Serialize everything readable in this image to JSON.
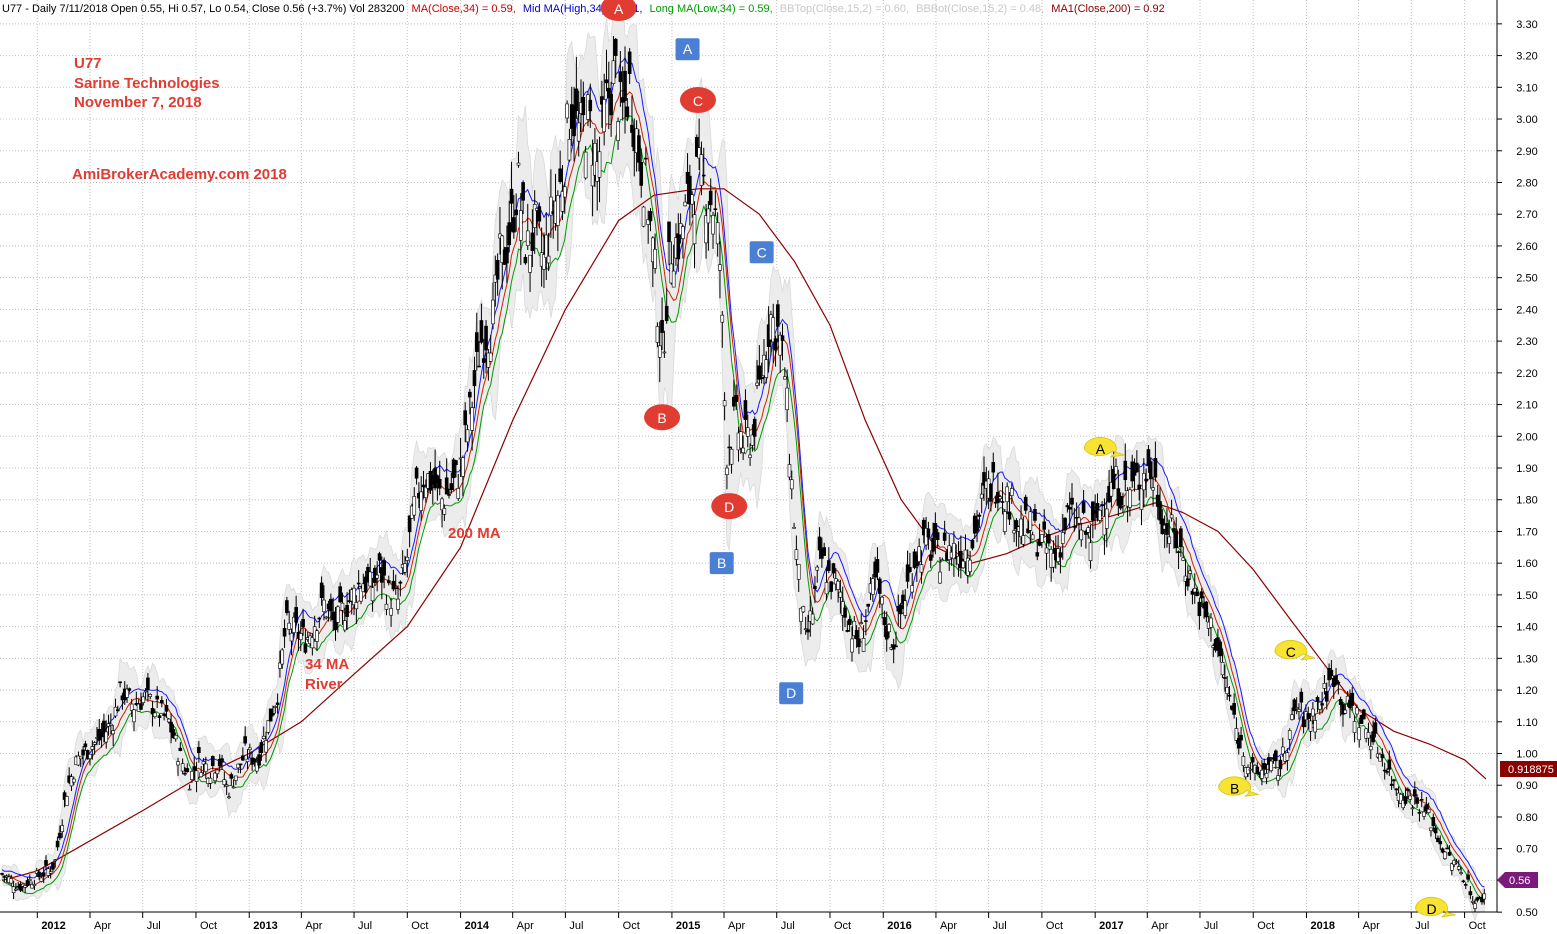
{
  "header": {
    "symbol_info": "U77 - Daily 7/11/2018 Open 0.55, Hi 0.57, Lo 0.54, Close 0.56 (+3.7%) Vol 283200",
    "indicators": [
      {
        "label": "MA(Close,34) = 0.59,",
        "color": "#cc0000"
      },
      {
        "label": "Mid MA(High,34) = 0.61,",
        "color": "#0000cc"
      },
      {
        "label": "Long MA(Low,34) = 0.59,",
        "color": "#009900"
      },
      {
        "label": "BBTop(Close,15,2) = 0.60,",
        "color": "#c8c8c8"
      },
      {
        "label": "BBBot(Close,15,2) = 0.48,",
        "color": "#c8c8c8"
      },
      {
        "label": "MA1(Close,200) = 0.92",
        "color": "#880000"
      }
    ]
  },
  "annotations": {
    "ticker": "U77",
    "company": "Sarine Technologies",
    "date": "November 7, 2018",
    "site": "AmiBrokerAcademy.com  2018",
    "ma200": "200  MA",
    "ma34_line1": "34 MA",
    "ma34_line2": "River"
  },
  "price_tags": {
    "ma200_value": "0.918875",
    "close_value": "0.56"
  },
  "colors": {
    "candle": "#000000",
    "ma_close": "#cc2200",
    "ma_high": "#1a1aff",
    "ma_low": "#009900",
    "bands": "#d9d9d9",
    "ma200": "#8b0000",
    "red_marker": "#e03c31",
    "blue_marker": "#4a7fd4",
    "yellow_marker": "#f7e332",
    "annotation": "#e03c31",
    "close_tag": "#7a1a7a"
  },
  "markers": [
    {
      "shape": "red-circle",
      "label": "A",
      "x": "2014-10-01",
      "y": 3.35
    },
    {
      "shape": "red-circle",
      "label": "B",
      "x": "2014-12-15",
      "y": 2.06
    },
    {
      "shape": "red-circle",
      "label": "C",
      "x": "2015-02-15",
      "y": 3.06
    },
    {
      "shape": "red-circle",
      "label": "D",
      "x": "2015-04-10",
      "y": 1.78
    },
    {
      "shape": "blue-square",
      "label": "A",
      "x": "2015-01-28",
      "y": 3.22
    },
    {
      "shape": "blue-square",
      "label": "B",
      "x": "2015-03-28",
      "y": 1.6
    },
    {
      "shape": "blue-square",
      "label": "C",
      "x": "2015-06-05",
      "y": 2.58
    },
    {
      "shape": "blue-square",
      "label": "D",
      "x": "2015-07-26",
      "y": 1.19
    },
    {
      "shape": "yellow-bubble",
      "label": "A",
      "x": "2017-01-10",
      "y": 1.96
    },
    {
      "shape": "yellow-bubble",
      "label": "B",
      "x": "2017-08-30",
      "y": 0.89
    },
    {
      "shape": "yellow-bubble",
      "label": "C",
      "x": "2017-12-05",
      "y": 1.32
    },
    {
      "shape": "yellow-bubble",
      "label": "D",
      "x": "2018-08-05",
      "y": 0.51
    }
  ],
  "chart_data": {
    "type": "line",
    "subtype": "candlestick",
    "xlabel": "",
    "ylabel": "",
    "ylim": [
      0.45,
      3.35
    ],
    "y_ticks": [
      0.5,
      0.6,
      0.7,
      0.8,
      0.9,
      1.0,
      1.1,
      1.2,
      1.3,
      1.4,
      1.5,
      1.6,
      1.7,
      1.8,
      1.9,
      2.0,
      2.1,
      2.2,
      2.3,
      2.4,
      2.5,
      2.6,
      2.7,
      2.8,
      2.9,
      3.0,
      3.1,
      3.2,
      3.3
    ],
    "y_tick_labels": [
      "0.50",
      "0.60",
      "0.70",
      "0.80",
      "0.90",
      "1.00",
      "1.10",
      "1.20",
      "1.30",
      "1.40",
      "1.50",
      "1.60",
      "1.70",
      "1.80",
      "1.90",
      "2.00",
      "2.10",
      "2.20",
      "2.30",
      "2.40",
      "2.50",
      "2.60",
      "2.70",
      "2.80",
      "2.90",
      "3.00",
      "3.10",
      "3.20",
      "3.30"
    ],
    "xlim": [
      "2011-11-01",
      "2018-11-07"
    ],
    "x_ticks": [
      {
        "label": "2012",
        "date": "2012-01-01",
        "bold": true
      },
      {
        "label": "Apr",
        "date": "2012-04-01"
      },
      {
        "label": "Jul",
        "date": "2012-07-01"
      },
      {
        "label": "Oct",
        "date": "2012-10-01"
      },
      {
        "label": "2013",
        "date": "2013-01-01",
        "bold": true
      },
      {
        "label": "Apr",
        "date": "2013-04-01"
      },
      {
        "label": "Jul",
        "date": "2013-07-01"
      },
      {
        "label": "Oct",
        "date": "2013-10-01"
      },
      {
        "label": "2014",
        "date": "2014-01-01",
        "bold": true
      },
      {
        "label": "Apr",
        "date": "2014-04-01"
      },
      {
        "label": "Jul",
        "date": "2014-07-01"
      },
      {
        "label": "Oct",
        "date": "2014-10-01"
      },
      {
        "label": "2015",
        "date": "2015-01-01",
        "bold": true
      },
      {
        "label": "Apr",
        "date": "2015-04-01"
      },
      {
        "label": "Jul",
        "date": "2015-07-01"
      },
      {
        "label": "Oct",
        "date": "2015-10-01"
      },
      {
        "label": "2016",
        "date": "2016-01-01",
        "bold": true
      },
      {
        "label": "Apr",
        "date": "2016-04-01"
      },
      {
        "label": "Jul",
        "date": "2016-07-01"
      },
      {
        "label": "Oct",
        "date": "2016-10-01"
      },
      {
        "label": "2017",
        "date": "2017-01-01",
        "bold": true
      },
      {
        "label": "Apr",
        "date": "2017-04-01"
      },
      {
        "label": "Jul",
        "date": "2017-07-01"
      },
      {
        "label": "Oct",
        "date": "2017-10-01"
      },
      {
        "label": "2018",
        "date": "2018-01-01",
        "bold": true
      },
      {
        "label": "Apr",
        "date": "2018-04-01"
      },
      {
        "label": "Jul",
        "date": "2018-07-01"
      },
      {
        "label": "Oct",
        "date": "2018-10-01"
      }
    ],
    "grid": true,
    "series": [
      {
        "name": "Close",
        "role": "candles",
        "points": [
          [
            "2011-11-01",
            0.62
          ],
          [
            "2011-12-01",
            0.58
          ],
          [
            "2011-12-20",
            0.6
          ],
          [
            "2012-01-10",
            0.62
          ],
          [
            "2012-01-31",
            0.65
          ],
          [
            "2012-02-20",
            0.88
          ],
          [
            "2012-03-10",
            0.98
          ],
          [
            "2012-04-01",
            1.02
          ],
          [
            "2012-04-20",
            1.05
          ],
          [
            "2012-05-10",
            1.1
          ],
          [
            "2012-05-25",
            1.2
          ],
          [
            "2012-06-15",
            1.15
          ],
          [
            "2012-07-05",
            1.18
          ],
          [
            "2012-07-25",
            1.14
          ],
          [
            "2012-08-15",
            1.1
          ],
          [
            "2012-09-01",
            1.0
          ],
          [
            "2012-09-20",
            0.92
          ],
          [
            "2012-10-05",
            0.98
          ],
          [
            "2012-10-25",
            0.95
          ],
          [
            "2012-11-10",
            0.98
          ],
          [
            "2012-11-25",
            0.88
          ],
          [
            "2012-12-10",
            0.94
          ],
          [
            "2012-12-25",
            1.0
          ],
          [
            "2013-01-15",
            0.98
          ],
          [
            "2013-02-01",
            1.08
          ],
          [
            "2013-02-20",
            1.2
          ],
          [
            "2013-03-05",
            1.4
          ],
          [
            "2013-03-25",
            1.38
          ],
          [
            "2013-04-10",
            1.36
          ],
          [
            "2013-04-25",
            1.42
          ],
          [
            "2013-05-10",
            1.47
          ],
          [
            "2013-05-30",
            1.4
          ],
          [
            "2013-06-15",
            1.46
          ],
          [
            "2013-06-30",
            1.5
          ],
          [
            "2013-07-15",
            1.55
          ],
          [
            "2013-07-30",
            1.52
          ],
          [
            "2013-08-15",
            1.58
          ],
          [
            "2013-08-30",
            1.5
          ],
          [
            "2013-09-15",
            1.48
          ],
          [
            "2013-10-01",
            1.62
          ],
          [
            "2013-10-15",
            1.8
          ],
          [
            "2013-10-30",
            1.88
          ],
          [
            "2013-11-15",
            1.85
          ],
          [
            "2013-11-30",
            1.8
          ],
          [
            "2013-12-15",
            1.83
          ],
          [
            "2014-01-01",
            1.9
          ],
          [
            "2014-01-20",
            2.1
          ],
          [
            "2014-02-05",
            2.3
          ],
          [
            "2014-02-25",
            2.35
          ],
          [
            "2014-03-10",
            2.55
          ],
          [
            "2014-03-25",
            2.62
          ],
          [
            "2014-04-10",
            2.8
          ],
          [
            "2014-04-25",
            2.58
          ],
          [
            "2014-05-10",
            2.65
          ],
          [
            "2014-05-25",
            2.55
          ],
          [
            "2014-06-10",
            2.72
          ],
          [
            "2014-06-25",
            2.8
          ],
          [
            "2014-07-10",
            3.05
          ],
          [
            "2014-07-25",
            2.95
          ],
          [
            "2014-08-10",
            3.0
          ],
          [
            "2014-08-25",
            2.85
          ],
          [
            "2014-09-10",
            3.05
          ],
          [
            "2014-09-25",
            3.15
          ],
          [
            "2014-10-05",
            3.0
          ],
          [
            "2014-10-20",
            3.1
          ],
          [
            "2014-11-05",
            2.9
          ],
          [
            "2014-11-20",
            2.75
          ],
          [
            "2014-12-01",
            2.55
          ],
          [
            "2014-12-15",
            2.25
          ],
          [
            "2014-12-30",
            2.6
          ],
          [
            "2015-01-15",
            2.62
          ],
          [
            "2015-01-30",
            2.75
          ],
          [
            "2015-02-15",
            2.82
          ],
          [
            "2015-03-01",
            2.78
          ],
          [
            "2015-03-15",
            2.72
          ],
          [
            "2015-03-25",
            2.55
          ],
          [
            "2015-04-05",
            1.95
          ],
          [
            "2015-04-20",
            2.05
          ],
          [
            "2015-05-05",
            1.98
          ],
          [
            "2015-05-20",
            2.0
          ],
          [
            "2015-06-05",
            2.2
          ],
          [
            "2015-06-20",
            2.38
          ],
          [
            "2015-07-05",
            2.32
          ],
          [
            "2015-07-15",
            2.2
          ],
          [
            "2015-07-25",
            1.9
          ],
          [
            "2015-08-05",
            1.6
          ],
          [
            "2015-08-20",
            1.35
          ],
          [
            "2015-09-01",
            1.45
          ],
          [
            "2015-09-15",
            1.62
          ],
          [
            "2015-10-01",
            1.55
          ],
          [
            "2015-10-20",
            1.5
          ],
          [
            "2015-11-05",
            1.4
          ],
          [
            "2015-11-20",
            1.35
          ],
          [
            "2015-12-05",
            1.45
          ],
          [
            "2015-12-20",
            1.55
          ],
          [
            "2016-01-05",
            1.4
          ],
          [
            "2016-01-20",
            1.35
          ],
          [
            "2016-02-05",
            1.48
          ],
          [
            "2016-02-25",
            1.62
          ],
          [
            "2016-03-15",
            1.66
          ],
          [
            "2016-04-05",
            1.62
          ],
          [
            "2016-04-25",
            1.65
          ],
          [
            "2016-05-15",
            1.63
          ],
          [
            "2016-06-05",
            1.68
          ],
          [
            "2016-06-25",
            1.82
          ],
          [
            "2016-07-15",
            1.86
          ],
          [
            "2016-08-05",
            1.8
          ],
          [
            "2016-08-25",
            1.72
          ],
          [
            "2016-09-15",
            1.7
          ],
          [
            "2016-10-05",
            1.65
          ],
          [
            "2016-10-25",
            1.62
          ],
          [
            "2016-11-15",
            1.75
          ],
          [
            "2016-12-05",
            1.72
          ],
          [
            "2016-12-25",
            1.68
          ],
          [
            "2017-01-15",
            1.8
          ],
          [
            "2017-02-05",
            1.85
          ],
          [
            "2017-02-25",
            1.82
          ],
          [
            "2017-03-15",
            1.86
          ],
          [
            "2017-04-01",
            1.9
          ],
          [
            "2017-04-15",
            1.85
          ],
          [
            "2017-05-01",
            1.72
          ],
          [
            "2017-05-20",
            1.68
          ],
          [
            "2017-06-05",
            1.6
          ],
          [
            "2017-06-20",
            1.52
          ],
          [
            "2017-07-05",
            1.45
          ],
          [
            "2017-07-20",
            1.4
          ],
          [
            "2017-08-05",
            1.3
          ],
          [
            "2017-08-20",
            1.18
          ],
          [
            "2017-09-05",
            1.05
          ],
          [
            "2017-09-20",
            0.98
          ],
          [
            "2017-10-05",
            0.93
          ],
          [
            "2017-10-25",
            0.96
          ],
          [
            "2017-11-15",
            0.95
          ],
          [
            "2017-12-01",
            1.05
          ],
          [
            "2017-12-15",
            1.15
          ],
          [
            "2018-01-01",
            1.1
          ],
          [
            "2018-01-20",
            1.15
          ],
          [
            "2018-02-05",
            1.2
          ],
          [
            "2018-02-20",
            1.26
          ],
          [
            "2018-03-05",
            1.15
          ],
          [
            "2018-03-20",
            1.14
          ],
          [
            "2018-04-05",
            1.1
          ],
          [
            "2018-04-25",
            1.05
          ],
          [
            "2018-05-15",
            0.98
          ],
          [
            "2018-06-01",
            0.9
          ],
          [
            "2018-06-15",
            0.88
          ],
          [
            "2018-07-01",
            0.86
          ],
          [
            "2018-07-15",
            0.84
          ],
          [
            "2018-08-01",
            0.8
          ],
          [
            "2018-08-20",
            0.72
          ],
          [
            "2018-09-05",
            0.67
          ],
          [
            "2018-09-20",
            0.64
          ],
          [
            "2018-10-05",
            0.6
          ],
          [
            "2018-10-20",
            0.52
          ],
          [
            "2018-11-07",
            0.56
          ]
        ]
      },
      {
        "name": "MA1(Close,200)",
        "role": "ma200",
        "points": [
          [
            "2011-11-01",
            0.6
          ],
          [
            "2012-01-01",
            0.63
          ],
          [
            "2012-07-01",
            0.82
          ],
          [
            "2012-10-01",
            0.92
          ],
          [
            "2013-01-01",
            1.0
          ],
          [
            "2013-04-01",
            1.1
          ],
          [
            "2013-07-01",
            1.25
          ],
          [
            "2013-10-01",
            1.4
          ],
          [
            "2014-01-01",
            1.65
          ],
          [
            "2014-04-01",
            2.05
          ],
          [
            "2014-07-01",
            2.4
          ],
          [
            "2014-10-01",
            2.68
          ],
          [
            "2014-12-01",
            2.76
          ],
          [
            "2015-02-15",
            2.78
          ],
          [
            "2015-04-01",
            2.78
          ],
          [
            "2015-06-01",
            2.7
          ],
          [
            "2015-08-01",
            2.55
          ],
          [
            "2015-10-01",
            2.35
          ],
          [
            "2015-12-01",
            2.05
          ],
          [
            "2016-02-01",
            1.8
          ],
          [
            "2016-04-01",
            1.65
          ],
          [
            "2016-06-01",
            1.6
          ],
          [
            "2016-08-01",
            1.63
          ],
          [
            "2016-10-01",
            1.68
          ],
          [
            "2016-12-01",
            1.72
          ],
          [
            "2017-02-01",
            1.75
          ],
          [
            "2017-04-15",
            1.79
          ],
          [
            "2017-06-01",
            1.76
          ],
          [
            "2017-08-01",
            1.7
          ],
          [
            "2017-10-01",
            1.58
          ],
          [
            "2017-12-01",
            1.43
          ],
          [
            "2018-02-01",
            1.28
          ],
          [
            "2018-04-01",
            1.14
          ],
          [
            "2018-06-01",
            1.07
          ],
          [
            "2018-08-01",
            1.03
          ],
          [
            "2018-10-01",
            0.98
          ],
          [
            "2018-11-07",
            0.92
          ]
        ]
      },
      {
        "name": "MA(Close,34)",
        "role": "ma_close",
        "derived_from": "Close"
      },
      {
        "name": "Mid MA(High,34)",
        "role": "ma_high",
        "derived_from": "Close"
      },
      {
        "name": "Long MA(Low,34)",
        "role": "ma_low",
        "derived_from": "Close"
      }
    ]
  }
}
